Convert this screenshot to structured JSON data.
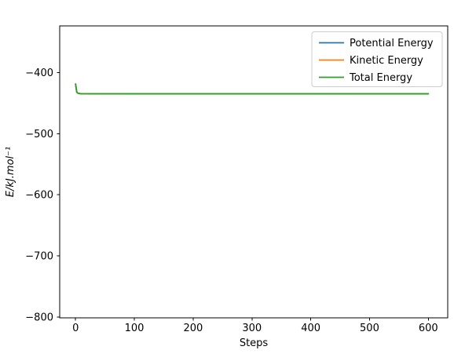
{
  "figure": {
    "background": "#ffffff"
  },
  "chart_data": {
    "type": "line",
    "title": "",
    "xlabel": "Steps",
    "ylabel": "E/kJ.mol⁻¹",
    "xlim": [
      -27,
      633
    ],
    "ylim": [
      -801,
      -324
    ],
    "xticks": [
      0,
      100,
      200,
      300,
      400,
      500,
      600
    ],
    "yticks": [
      -400,
      -500,
      -600,
      -700,
      -800
    ],
    "grid": false,
    "legend": {
      "position": "upper right",
      "border_color": "#cccccc",
      "background": "#ffffff"
    },
    "series": [
      {
        "name": "Potential Energy",
        "color": "#1f77b4",
        "points": [
          [
            0,
            -419
          ],
          [
            2,
            -432
          ],
          [
            4,
            -434
          ],
          [
            8,
            -434.8
          ],
          [
            100,
            -435
          ],
          [
            200,
            -435
          ],
          [
            300,
            -435
          ],
          [
            400,
            -435
          ],
          [
            500,
            -435
          ],
          [
            600,
            -435
          ]
        ]
      },
      {
        "name": "Kinetic Energy",
        "color": "#ff7f0e",
        "points": [
          [
            0,
            -419
          ],
          [
            2,
            -432
          ],
          [
            4,
            -434
          ],
          [
            8,
            -434.8
          ],
          [
            100,
            -435
          ],
          [
            200,
            -435
          ],
          [
            300,
            -435
          ],
          [
            400,
            -435
          ],
          [
            500,
            -435
          ],
          [
            600,
            -435
          ]
        ]
      },
      {
        "name": "Total Energy",
        "color": "#2ca02c",
        "points": [
          [
            0,
            -419
          ],
          [
            2,
            -432
          ],
          [
            4,
            -434
          ],
          [
            8,
            -434.8
          ],
          [
            100,
            -435
          ],
          [
            200,
            -435
          ],
          [
            300,
            -435
          ],
          [
            400,
            -435
          ],
          [
            500,
            -435
          ],
          [
            600,
            -435
          ]
        ]
      }
    ]
  }
}
